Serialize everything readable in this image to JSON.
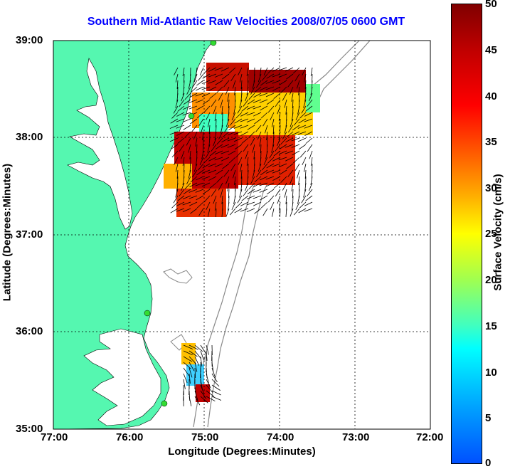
{
  "title": "Southern Mid-Atlantic Raw Velocities 2008/07/05 0600 GMT",
  "x_axis": {
    "label": "Longitude (Degrees:Minutes)",
    "ticks": [
      "77:00",
      "76:00",
      "75:00",
      "74:00",
      "73:00",
      "72:00"
    ]
  },
  "y_axis": {
    "label": "Latitude (Degrees:Minutes)",
    "ticks": [
      "39:00",
      "38:00",
      "37:00",
      "36:00",
      "35:00"
    ]
  },
  "colorbar": {
    "label": "Surface Velocity (cm/s)",
    "ticks": [
      "50",
      "45",
      "40",
      "35",
      "30",
      "25",
      "20",
      "15",
      "10",
      "5",
      "0"
    ],
    "min": 0,
    "max": 50
  },
  "colors": {
    "land": "#55f7b0",
    "water": "#ffffff",
    "title": "#0000ff",
    "bathymetry": "#888888",
    "station": "#33dd33"
  },
  "map_extent": {
    "lon": [
      -77,
      -72
    ],
    "lat": [
      35,
      39
    ]
  },
  "grid": true
}
